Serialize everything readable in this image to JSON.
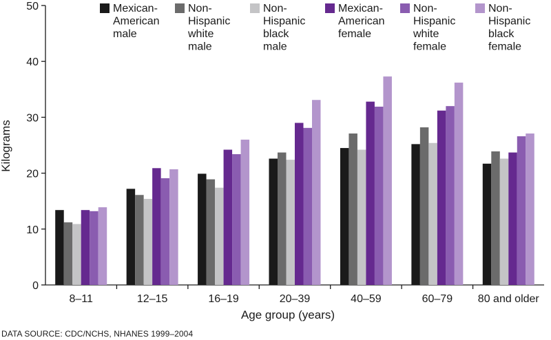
{
  "chart_data": {
    "type": "bar",
    "title": "",
    "xlabel": "Age group (years)",
    "ylabel": "Kilograms",
    "ylim": [
      0,
      50
    ],
    "yticks": [
      0,
      10,
      20,
      30,
      40,
      50
    ],
    "grid": false,
    "legend_position": "top-right",
    "categories": [
      "8–11",
      "12–15",
      "16–19",
      "20–39",
      "40–59",
      "60–79",
      "80 and older"
    ],
    "series": [
      {
        "name": "Mexican-American male",
        "label_lines": [
          "Mexican-",
          "American",
          "male"
        ],
        "color": "#1a1a1a",
        "values": [
          13.4,
          17.2,
          19.9,
          22.6,
          24.5,
          25.2,
          21.7
        ]
      },
      {
        "name": "Non-Hispanic white male",
        "label_lines": [
          "Non-",
          "Hispanic",
          "white",
          "male"
        ],
        "color": "#6b6b6b",
        "values": [
          11.2,
          16.1,
          18.9,
          23.7,
          27.1,
          28.2,
          23.9
        ]
      },
      {
        "name": "Non-Hispanic black male",
        "label_lines": [
          "Non-",
          "Hispanic",
          "black",
          "male"
        ],
        "color": "#c4c4c6",
        "values": [
          10.9,
          15.4,
          17.4,
          22.4,
          24.2,
          25.4,
          22.6
        ]
      },
      {
        "name": "Mexican-American female",
        "label_lines": [
          "Mexican-",
          "American",
          "female"
        ],
        "color": "#65298f",
        "values": [
          13.4,
          20.9,
          24.2,
          29.0,
          32.8,
          31.2,
          23.7
        ]
      },
      {
        "name": "Non-Hispanic white female",
        "label_lines": [
          "Non-",
          "Hispanic",
          "white",
          "female"
        ],
        "color": "#8a5cb0",
        "values": [
          13.2,
          19.1,
          23.4,
          28.1,
          31.9,
          32.0,
          26.6
        ]
      },
      {
        "name": "Non-Hispanic black female",
        "label_lines": [
          "Non-",
          "Hispanic",
          "black",
          "female"
        ],
        "color": "#b395cc",
        "values": [
          13.9,
          20.7,
          26.0,
          33.1,
          37.3,
          36.2,
          27.1
        ]
      }
    ]
  },
  "footer": {
    "source": "DATA SOURCE: CDC/NCHS, NHANES 1999–2004"
  }
}
